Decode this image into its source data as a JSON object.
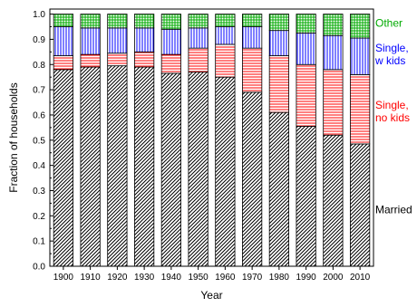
{
  "chart_data": {
    "type": "bar",
    "stacked": true,
    "xlabel": "Year",
    "ylabel": "Fraction of households",
    "ylim": [
      0,
      1.02
    ],
    "yticks": [
      "0.0",
      "0.1",
      "0.2",
      "0.3",
      "0.4",
      "0.5",
      "0.6",
      "0.7",
      "0.8",
      "0.9",
      "1.0"
    ],
    "categories": [
      "1900",
      "1910",
      "1920",
      "1930",
      "1940",
      "1950",
      "1960",
      "1970",
      "1980",
      "1990",
      "2000",
      "2010"
    ],
    "legend_position": "right",
    "series": [
      {
        "name": "Married",
        "color": "#000000",
        "pattern": "diagonal",
        "values": [
          0.78,
          0.79,
          0.795,
          0.79,
          0.765,
          0.77,
          0.75,
          0.69,
          0.61,
          0.555,
          0.52,
          0.485
        ]
      },
      {
        "name": "Single, no kids",
        "color": "#ff0000",
        "pattern": "horizontal",
        "values": [
          0.055,
          0.05,
          0.05,
          0.06,
          0.075,
          0.095,
          0.13,
          0.175,
          0.225,
          0.245,
          0.26,
          0.275
        ]
      },
      {
        "name": "Single, w kids",
        "color": "#0000ff",
        "pattern": "vertical",
        "values": [
          0.115,
          0.105,
          0.1,
          0.095,
          0.1,
          0.08,
          0.07,
          0.085,
          0.1,
          0.125,
          0.135,
          0.145
        ]
      },
      {
        "name": "Other",
        "color": "#00aa00",
        "pattern": "grid",
        "values": [
          0.05,
          0.055,
          0.055,
          0.055,
          0.06,
          0.055,
          0.05,
          0.05,
          0.065,
          0.075,
          0.085,
          0.095
        ]
      }
    ],
    "legend_labels": [
      {
        "series": 3,
        "lines": [
          "Other"
        ],
        "anchor_value": 0.965
      },
      {
        "series": 2,
        "lines": [
          "Single,",
          "w kids"
        ],
        "anchor_value": 0.84
      },
      {
        "series": 1,
        "lines": [
          "Single,",
          "no kids"
        ],
        "anchor_value": 0.615
      },
      {
        "series": 0,
        "lines": [
          "Married"
        ],
        "anchor_value": 0.225
      }
    ]
  }
}
